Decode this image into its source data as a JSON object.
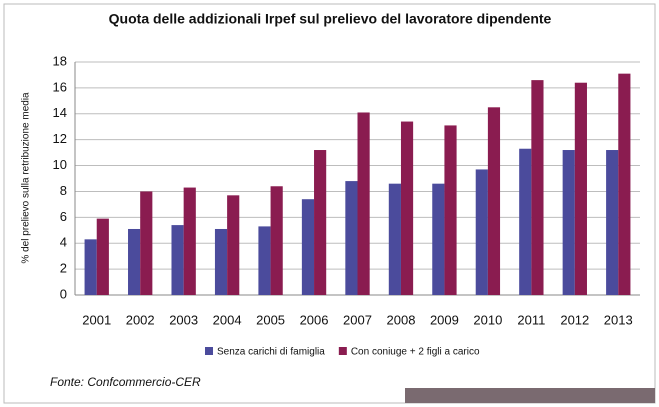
{
  "chart_data": {
    "type": "bar",
    "title": "Quota delle addizionali Irpef sul prelievo del lavoratore dipendente",
    "y_label": "% del prelievo sulla retribuzione media",
    "categories": [
      "2001",
      "2002",
      "2003",
      "2004",
      "2005",
      "2006",
      "2007",
      "2008",
      "2009",
      "2010",
      "2011",
      "2012",
      "2013"
    ],
    "series": [
      {
        "name": "Senza carichi di famiglia",
        "color": "#4b4b9c",
        "values": [
          4.3,
          5.1,
          5.4,
          5.1,
          5.3,
          7.4,
          8.8,
          8.6,
          8.6,
          9.7,
          11.3,
          11.2,
          11.2
        ]
      },
      {
        "name": "Con coniuge + 2 figli a carico",
        "color": "#8a1c50",
        "values": [
          5.9,
          8.0,
          8.3,
          7.7,
          8.4,
          11.2,
          14.1,
          13.4,
          13.1,
          14.5,
          16.6,
          16.4,
          17.1
        ]
      }
    ],
    "ylim": [
      0,
      18
    ],
    "yticks": [
      0,
      2,
      4,
      6,
      8,
      10,
      12,
      14,
      16,
      18
    ],
    "grid": true,
    "source": "Fonte: Confcommercio-CER"
  }
}
